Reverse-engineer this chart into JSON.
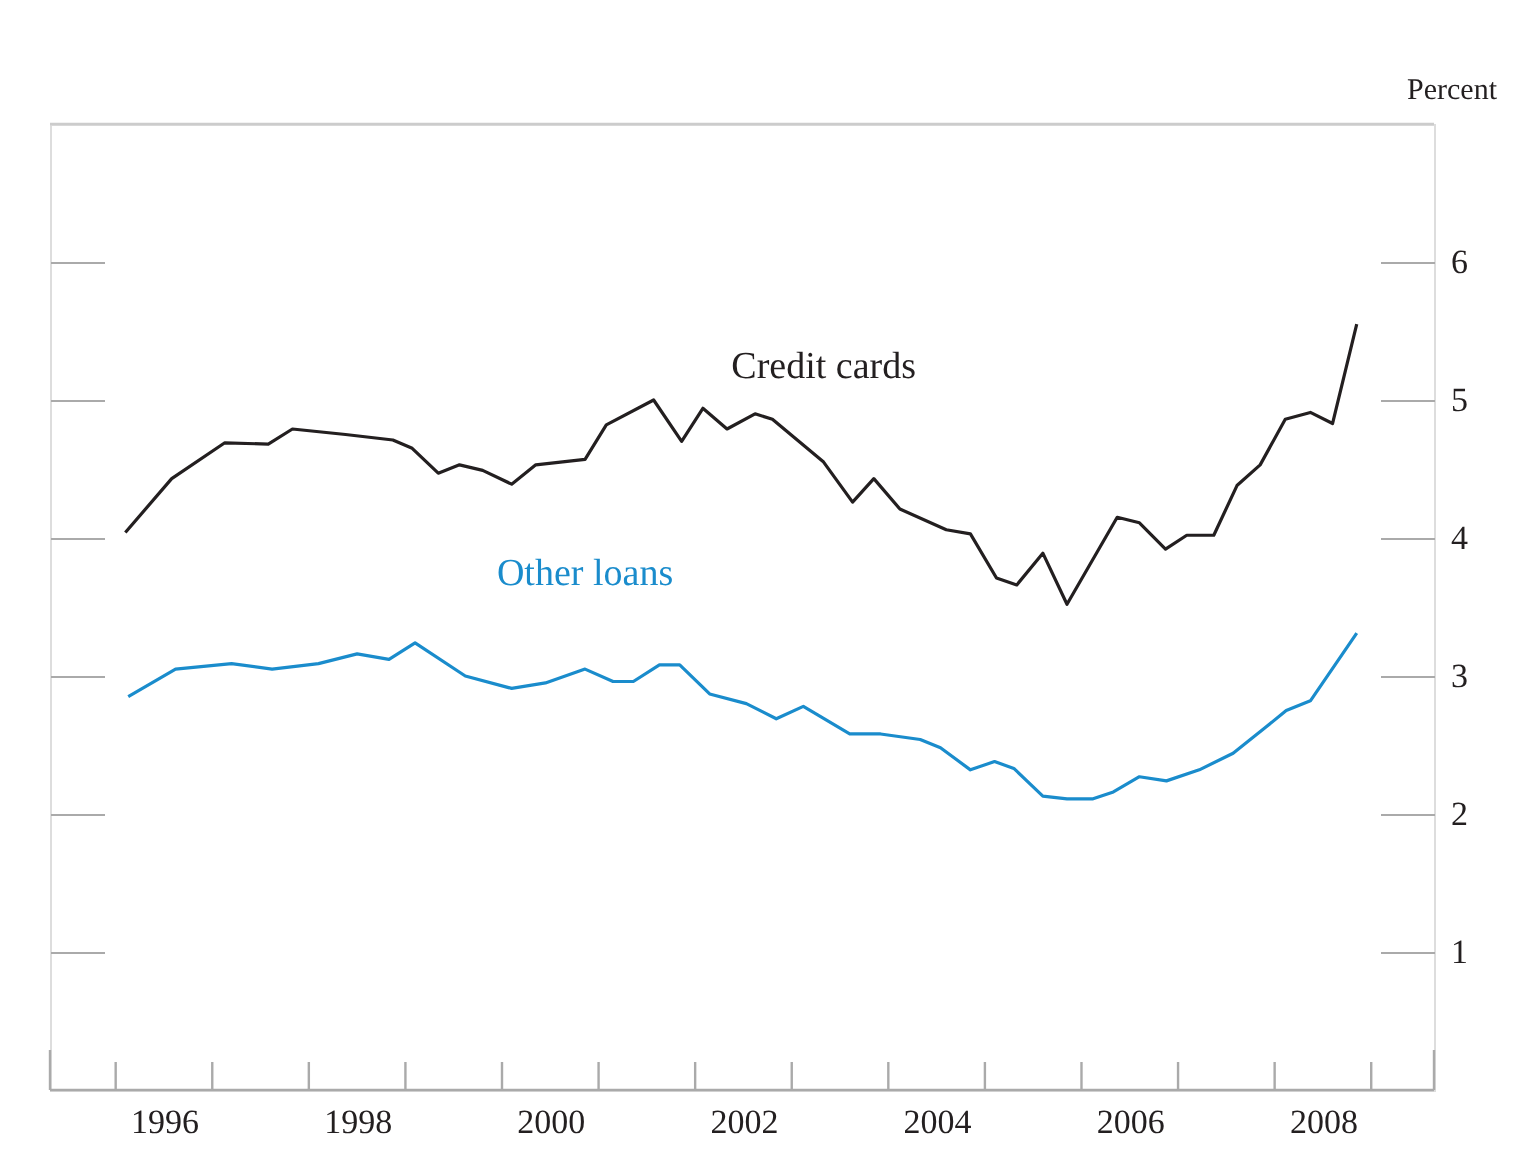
{
  "chart_data": {
    "type": "line",
    "ylabel": "Percent",
    "xlim": [
      1995.32,
      2009.65
    ],
    "ylim": [
      0,
      7
    ],
    "yticks": [
      1,
      2,
      3,
      4,
      5,
      6
    ],
    "xticks": [
      {
        "value": 1996,
        "label": null
      },
      {
        "value": 1996.5,
        "label": "1996"
      },
      {
        "value": 1997,
        "label": null
      },
      {
        "value": 1998,
        "label": null
      },
      {
        "value": 1998.5,
        "label": "1998"
      },
      {
        "value": 1999,
        "label": null
      },
      {
        "value": 2000,
        "label": null
      },
      {
        "value": 2000.5,
        "label": "2000"
      },
      {
        "value": 2001,
        "label": null
      },
      {
        "value": 2002,
        "label": null
      },
      {
        "value": 2002.5,
        "label": "2002"
      },
      {
        "value": 2003,
        "label": null
      },
      {
        "value": 2004,
        "label": null
      },
      {
        "value": 2004.5,
        "label": "2004"
      },
      {
        "value": 2005,
        "label": null
      },
      {
        "value": 2006,
        "label": null
      },
      {
        "value": 2006.5,
        "label": "2006"
      },
      {
        "value": 2007,
        "label": null
      },
      {
        "value": 2008,
        "label": null
      },
      {
        "value": 2008.5,
        "label": "2008"
      },
      {
        "value": 2009,
        "label": null
      }
    ],
    "grid": false,
    "marker": "none",
    "line_style": "solid",
    "series": [
      {
        "name": "Credit cards",
        "color": "#231f20",
        "x": [
          1996.1,
          1996.58,
          1997.13,
          1997.58,
          1997.83,
          1998.38,
          1998.87,
          1999.07,
          1999.34,
          1999.56,
          1999.8,
          2000.1,
          2000.35,
          2000.86,
          2001.08,
          2001.57,
          2001.86,
          2002.08,
          2002.33,
          2002.62,
          2002.8,
          2003.33,
          2003.63,
          2003.85,
          2004.12,
          2004.6,
          2004.85,
          2005.12,
          2005.33,
          2005.6,
          2005.85,
          2006.37,
          2006.6,
          2006.87,
          2007.09,
          2007.37,
          2007.61,
          2007.85,
          2008.11,
          2008.37,
          2008.6,
          2008.85
        ],
        "values": [
          4.04,
          4.43,
          4.69,
          4.68,
          4.79,
          4.75,
          4.71,
          4.65,
          4.47,
          4.53,
          4.49,
          4.39,
          4.53,
          4.57,
          4.82,
          5.0,
          4.7,
          4.94,
          4.79,
          4.9,
          4.86,
          4.55,
          4.26,
          4.43,
          4.21,
          4.06,
          4.03,
          3.71,
          3.66,
          3.89,
          3.52,
          4.15,
          4.11,
          3.92,
          4.02,
          4.02,
          4.38,
          4.53,
          4.86,
          4.91,
          4.83,
          5.55
        ]
      },
      {
        "name": "Other loans",
        "color": "#1a8ccc",
        "x": [
          1996.13,
          1996.62,
          1997.2,
          1997.62,
          1998.1,
          1998.5,
          1998.83,
          1999.1,
          1999.62,
          2000.1,
          2000.45,
          2000.86,
          2001.15,
          2001.36,
          2001.63,
          2001.84,
          2002.15,
          2002.53,
          2002.84,
          2003.12,
          2003.6,
          2003.92,
          2004.33,
          2004.54,
          2004.85,
          2005.1,
          2005.3,
          2005.6,
          2005.85,
          2006.12,
          2006.33,
          2006.6,
          2006.88,
          2007.22,
          2007.57,
          2007.91,
          2008.12,
          2008.37,
          2008.85
        ],
        "values": [
          2.85,
          3.05,
          3.09,
          3.05,
          3.09,
          3.16,
          3.12,
          3.24,
          3.0,
          2.91,
          2.95,
          3.05,
          2.96,
          2.96,
          3.08,
          3.08,
          2.87,
          2.8,
          2.69,
          2.78,
          2.58,
          2.58,
          2.54,
          2.48,
          2.32,
          2.38,
          2.33,
          2.13,
          2.11,
          2.11,
          2.16,
          2.27,
          2.24,
          2.32,
          2.44,
          2.63,
          2.75,
          2.82,
          3.31
        ]
      }
    ]
  }
}
